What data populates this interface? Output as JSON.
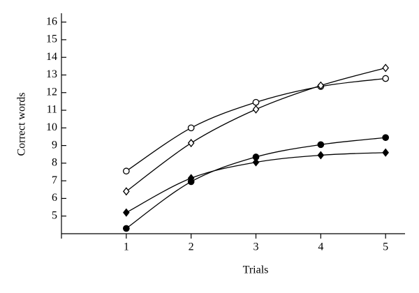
{
  "chart_data": {
    "type": "line",
    "xlabel": "Trials",
    "ylabel": "Correct words",
    "x": [
      1,
      2,
      3,
      4,
      5
    ],
    "series": [
      {
        "color": "#000000",
        "marker": "circle",
        "filled": false,
        "values": [
          7.55,
          10.0,
          11.45,
          12.35,
          12.8
        ]
      },
      {
        "color": "#000000",
        "marker": "diamond",
        "filled": false,
        "values": [
          6.4,
          9.14,
          11.05,
          12.4,
          13.4
        ]
      },
      {
        "color": "#000000",
        "marker": "circle",
        "filled": true,
        "values": [
          4.3,
          6.95,
          8.35,
          9.05,
          9.45
        ]
      },
      {
        "color": "#000000",
        "marker": "diamond",
        "filled": true,
        "values": [
          5.2,
          7.15,
          8.05,
          8.45,
          8.6
        ]
      }
    ],
    "xlim": [
      0,
      5.3
    ],
    "xticks": [
      1,
      2,
      3,
      4,
      5
    ],
    "ylim": [
      4,
      16.5
    ],
    "yticks": [
      5,
      6,
      7,
      8,
      9,
      10,
      11,
      12,
      13,
      14,
      15,
      16
    ],
    "grid": false
  }
}
